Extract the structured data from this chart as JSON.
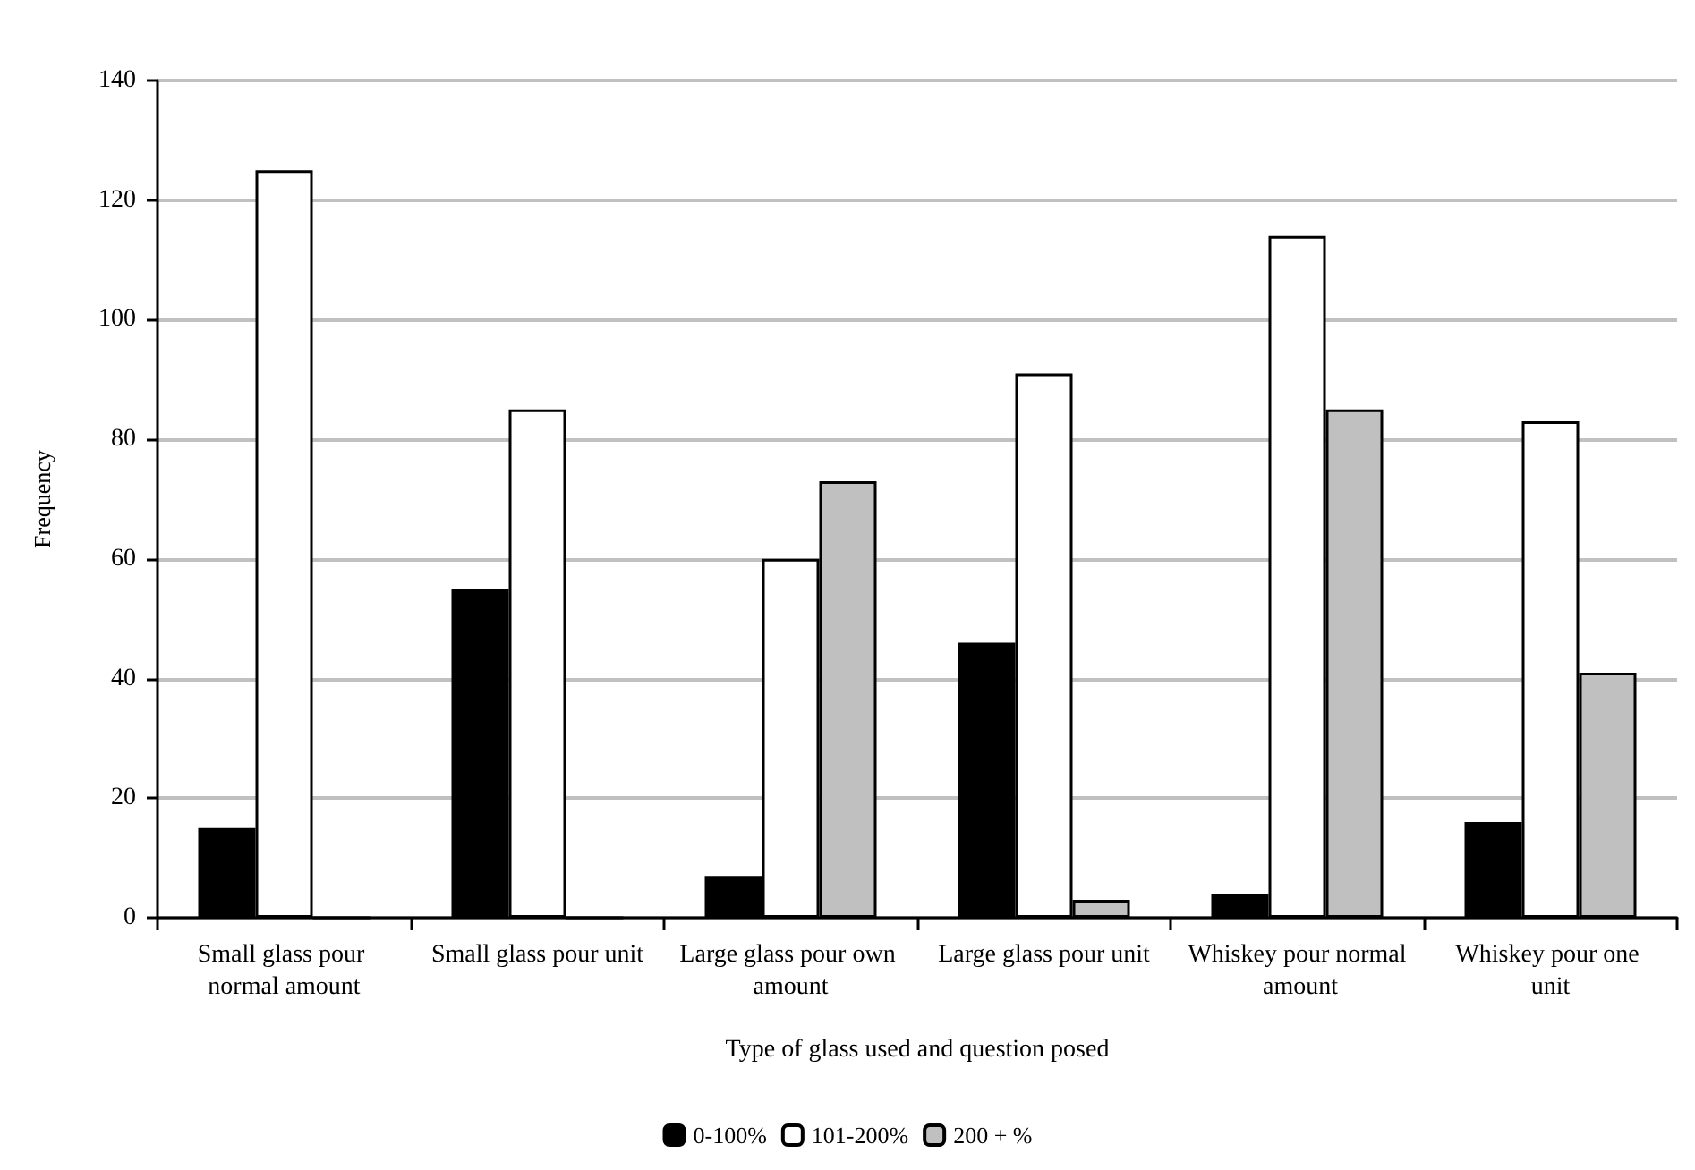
{
  "chart_data": {
    "type": "bar",
    "xlabel": "Type of glass used and question posed",
    "ylabel": "Frequency",
    "categories": [
      "Small glass pour normal amount",
      "Small glass pour unit",
      "Large glass pour own amount",
      "Large glass pour unit",
      "Whiskey pour normal amount",
      "Whiskey pour one unit"
    ],
    "series": [
      {
        "name": "0-100%",
        "color": "#000000",
        "values": [
          15,
          55,
          7,
          46,
          4,
          16
        ]
      },
      {
        "name": "101-200%",
        "color": "#ffffff",
        "values": [
          125,
          85,
          60,
          91,
          114,
          83
        ]
      },
      {
        "name": "200 + %",
        "color": "#c0c0c0",
        "values": [
          0,
          0,
          73,
          3,
          85,
          41
        ]
      }
    ],
    "ylim": [
      0,
      140
    ],
    "yticks": [
      0,
      20,
      40,
      60,
      80,
      100,
      120,
      140
    ],
    "grid": "y",
    "legend": "bottom"
  }
}
